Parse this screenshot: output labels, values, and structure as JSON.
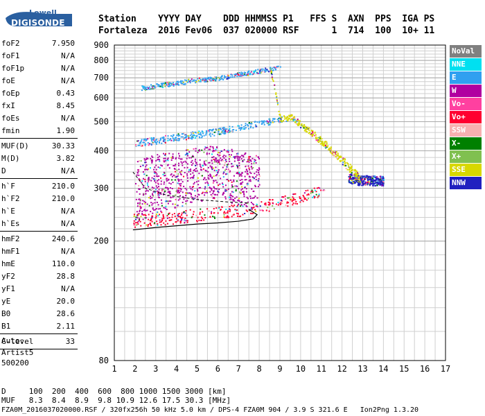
{
  "logo": {
    "top": "Lowell",
    "bottom": "DIGISONDE"
  },
  "header": {
    "line1": "Station    YYYY DAY    DDD HHMMSS P1   FFS S  AXN  PPS  IGA PS",
    "line2": "Fortaleza  2016 Fev06  037 020000 RSF      1  714  100  10+ 11"
  },
  "params": {
    "group1": [
      {
        "name": "foF2",
        "value": "7.950"
      },
      {
        "name": "foF1",
        "value": "N/A"
      },
      {
        "name": "foF1p",
        "value": "N/A"
      },
      {
        "name": "foE",
        "value": "N/A"
      },
      {
        "name": "foEp",
        "value": "0.43"
      },
      {
        "name": "fxI",
        "value": "8.45"
      },
      {
        "name": "foEs",
        "value": "N/A"
      },
      {
        "name": "fmin",
        "value": "1.90"
      }
    ],
    "group2": [
      {
        "name": "MUF(D)",
        "value": "30.33"
      },
      {
        "name": "M(D)",
        "value": "3.82"
      },
      {
        "name": "D",
        "value": "N/A"
      }
    ],
    "group3": [
      {
        "name": "h`F",
        "value": "210.0"
      },
      {
        "name": "h`F2",
        "value": "210.0"
      },
      {
        "name": "h`E",
        "value": "N/A"
      },
      {
        "name": "h`Es",
        "value": "N/A"
      }
    ],
    "group4": [
      {
        "name": "hmF2",
        "value": "240.6"
      },
      {
        "name": "hmF1",
        "value": "N/A"
      },
      {
        "name": "hmE",
        "value": "110.0"
      },
      {
        "name": "yF2",
        "value": "28.8"
      },
      {
        "name": "yF1",
        "value": "N/A"
      },
      {
        "name": "yE",
        "value": "20.0"
      },
      {
        "name": "B0",
        "value": "28.6"
      },
      {
        "name": "B1",
        "value": "2.11"
      }
    ],
    "group5": [
      {
        "name": "C-level",
        "value": "33"
      }
    ]
  },
  "auto": {
    "line1": "Auto:",
    "line2": "Artist5",
    "line3": "500200"
  },
  "legend": [
    {
      "label": "NoVal",
      "color": "#808080"
    },
    {
      "label": "NNE",
      "color": "#00e0f0"
    },
    {
      "label": "E",
      "color": "#30a0f0"
    },
    {
      "label": "W",
      "color": "#b000a0"
    },
    {
      "label": "Vo-",
      "color": "#ff40a0"
    },
    {
      "label": "Vo+",
      "color": "#ff0030"
    },
    {
      "label": "SSW",
      "color": "#f8b0b0"
    },
    {
      "label": "X-",
      "color": "#008000"
    },
    {
      "label": "X+",
      "color": "#80c050"
    },
    {
      "label": "SSE",
      "color": "#d8d800"
    },
    {
      "label": "NNW",
      "color": "#2020c0"
    }
  ],
  "footer": {
    "d_line": "D     100  200  400  600  800 1000 1500 3000 [km]",
    "muf_line": "MUF   8.3  8.4  8.9  9.8 10.9 12.6 17.5 30.3 [MHz]",
    "file_line": "FZA0M_2016037020000.RSF / 320fx256h 50 kHz 5.0 km / DPS-4 FZA0M 904 / 3.9 S 321.6 E   Ion2Png 1.3.20"
  },
  "chart_data": {
    "type": "scatter",
    "title": "",
    "xlabel": "",
    "ylabel": "",
    "xlim": [
      1,
      17
    ],
    "ylim": [
      80,
      900
    ],
    "x_ticks": [
      1,
      2,
      3,
      4,
      5,
      6,
      7,
      8,
      9,
      10,
      11,
      12,
      13,
      14,
      15,
      16,
      17
    ],
    "y_ticks": [
      80,
      200,
      300,
      400,
      500,
      600,
      700,
      800,
      900
    ],
    "y_scale": "log",
    "grid": true,
    "legend_position": "right",
    "ionogram_bands": [
      {
        "name": "O-trace F",
        "color_key": "Vo+",
        "points": [
          [
            1.9,
            235
          ],
          [
            2.5,
            237
          ],
          [
            3.5,
            240
          ],
          [
            4.5,
            243
          ],
          [
            5.5,
            247
          ],
          [
            6.5,
            252
          ],
          [
            7.5,
            257
          ],
          [
            8.5,
            265
          ],
          [
            9.5,
            275
          ],
          [
            10.5,
            288
          ],
          [
            11.2,
            300
          ]
        ]
      },
      {
        "name": "echo 2nd hop",
        "color_key": "E",
        "points": [
          [
            2.0,
            425
          ],
          [
            3.0,
            435
          ],
          [
            4.0,
            445
          ],
          [
            5.0,
            455
          ],
          [
            6.0,
            465
          ],
          [
            7.0,
            480
          ],
          [
            8.0,
            495
          ],
          [
            9.0,
            510
          ]
        ]
      },
      {
        "name": "echo 3rd hop",
        "color_key": "E",
        "points": [
          [
            2.3,
            650
          ],
          [
            3.0,
            660
          ],
          [
            4.0,
            675
          ],
          [
            5.0,
            690
          ],
          [
            6.0,
            700
          ],
          [
            7.0,
            720
          ],
          [
            8.0,
            740
          ],
          [
            9.0,
            760
          ]
        ]
      },
      {
        "name": "scatter",
        "color_key": "W",
        "points": [
          [
            2.0,
            300
          ],
          [
            3.0,
            320
          ],
          [
            4.0,
            330
          ],
          [
            5.0,
            340
          ],
          [
            6.0,
            350
          ],
          [
            7.0,
            330
          ],
          [
            8.0,
            320
          ]
        ]
      },
      {
        "name": "spread high",
        "color_key": "NNW",
        "points": [
          [
            12.3,
            325
          ],
          [
            12.8,
            320
          ],
          [
            13.3,
            320
          ],
          [
            14.0,
            318
          ]
        ]
      },
      {
        "name": "SSE cluster",
        "color_key": "SSE",
        "points": [
          [
            8.5,
            760
          ],
          [
            9.0,
            510
          ],
          [
            9.5,
            520
          ],
          [
            12.8,
            325
          ]
        ]
      }
    ],
    "profile_curve": [
      [
        1.9,
        218
      ],
      [
        3,
        222
      ],
      [
        4,
        225
      ],
      [
        5,
        228
      ],
      [
        6,
        230
      ],
      [
        7,
        233
      ],
      [
        7.7,
        237
      ],
      [
        7.9,
        245
      ],
      [
        7.5,
        255
      ]
    ],
    "dashed_curve": [
      [
        1.9,
        340
      ],
      [
        2.5,
        300
      ],
      [
        3.5,
        285
      ],
      [
        5.0,
        275
      ],
      [
        6.5,
        270
      ],
      [
        7.5,
        268
      ]
    ]
  }
}
